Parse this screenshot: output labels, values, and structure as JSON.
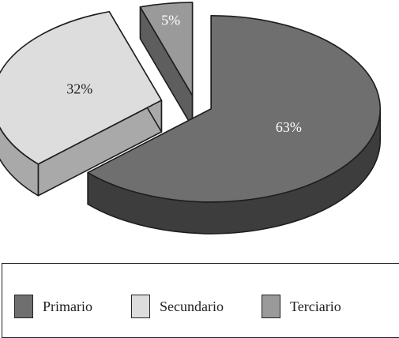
{
  "chart_data": {
    "type": "pie",
    "series": [
      {
        "name": "Primario",
        "value": 63,
        "label": "63%",
        "color": "#6f6f6f",
        "side_color": "#3d3d3d"
      },
      {
        "name": "Secundario",
        "value": 32,
        "label": "32%",
        "color": "#dddddd",
        "side_color": "#a9a9a9"
      },
      {
        "name": "Terciario",
        "value": 5,
        "label": "5%",
        "color": "#9a9a9a",
        "side_color": "#5e5e5e"
      }
    ],
    "exploded": true,
    "three_d": true,
    "legend_position": "bottom"
  },
  "legend": {
    "items": [
      {
        "label": "Primario",
        "color": "#6f6f6f"
      },
      {
        "label": "Secundario",
        "color": "#dddddd"
      },
      {
        "label": "Terciario",
        "color": "#9a9a9a"
      }
    ]
  }
}
